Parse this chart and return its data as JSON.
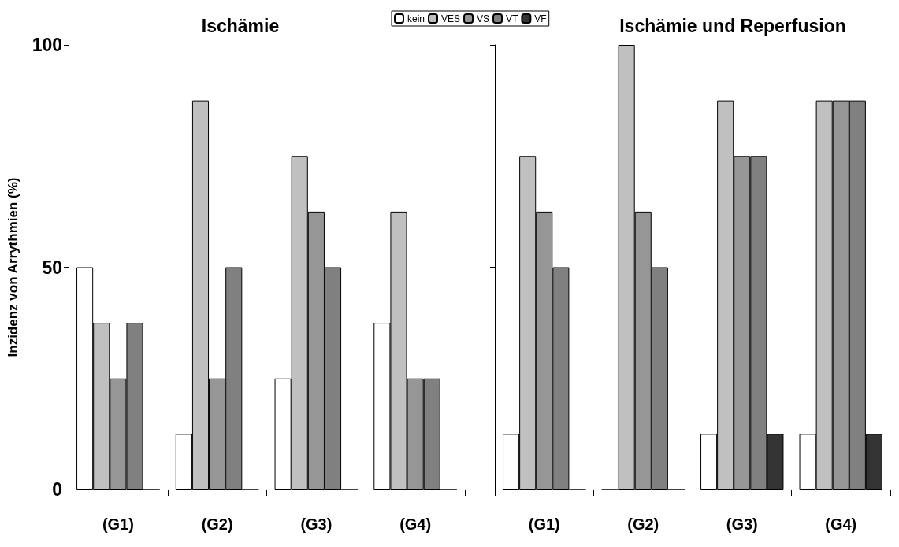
{
  "chart_data": [
    {
      "type": "bar",
      "title": "Ischämie",
      "ylabel": "Inzidenz von Arrythmien (%)",
      "categories": [
        "(G1)",
        "(G2)",
        "(G3)",
        "(G4)"
      ],
      "ylim": [
        0,
        100
      ],
      "yticks": [
        0,
        50,
        100
      ],
      "legend": "top",
      "series": [
        {
          "name": "kein",
          "color": "#ffffff",
          "values": [
            50,
            12.5,
            25,
            37.5
          ]
        },
        {
          "name": "VES",
          "color": "#c0c0c0",
          "values": [
            37.5,
            87.5,
            75,
            62.5
          ]
        },
        {
          "name": "VS",
          "color": "#969696",
          "values": [
            25,
            25,
            62.5,
            25
          ]
        },
        {
          "name": "VT",
          "color": "#808080",
          "values": [
            37.5,
            50,
            50,
            25
          ]
        },
        {
          "name": "VF",
          "color": "#333333",
          "values": [
            0,
            0,
            0,
            0
          ]
        }
      ]
    },
    {
      "type": "bar",
      "title": "Ischämie und Reperfusion",
      "categories": [
        "(G1)",
        "(G2)",
        "(G3)",
        "(G4)"
      ],
      "ylim": [
        0,
        100
      ],
      "yticks": [
        0,
        50,
        100
      ],
      "tick_labels": "x",
      "series": [
        {
          "color": "#ffffff",
          "values": [
            12.5,
            0,
            12.5,
            12.5
          ]
        },
        {
          "color": "#c0c0c0",
          "values": [
            75,
            100,
            87.5,
            87.5
          ]
        },
        {
          "color": "#969696",
          "values": [
            62.5,
            62.5,
            75,
            87.5
          ]
        },
        {
          "color": "#808080",
          "values": [
            50,
            50,
            75,
            87.5
          ]
        },
        {
          "color": "#333333",
          "values": [
            0,
            0,
            12.5,
            12.5
          ]
        }
      ]
    }
  ]
}
